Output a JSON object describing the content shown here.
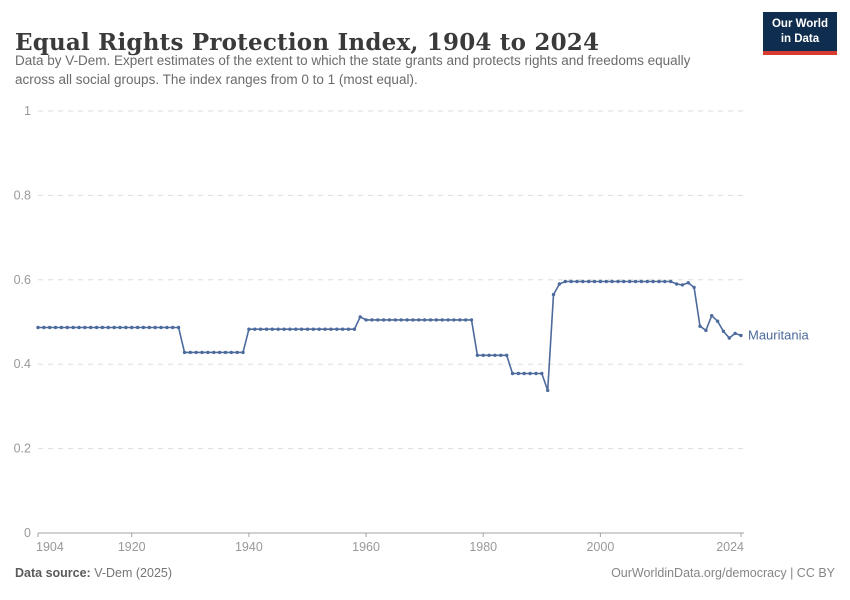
{
  "header": {
    "title": "Equal Rights Protection Index, 1904 to 2024",
    "subtitle": "Data by V-Dem. Expert estimates of the extent to which the state grants and protects rights and freedoms equally across all social groups. The index ranges from 0 to 1 (most equal).",
    "logo": {
      "line1": "Our World",
      "line2": "in Data"
    }
  },
  "footer": {
    "data_source_label": "Data source:",
    "data_source_value": " V-Dem (2025)",
    "right_text": "OurWorldinData.org/democracy | CC BY"
  },
  "colors": {
    "line": "#4C6A9C",
    "grid": "#dedede",
    "axis": "#a3a3a3",
    "tick_label": "#999999",
    "logo_bg": "#0f2d4e",
    "logo_accent": "#d73c34"
  },
  "chart_data": {
    "type": "line",
    "title": "Equal Rights Protection Index, 1904 to 2024",
    "xlabel": "",
    "ylabel": "",
    "xlim": [
      1904,
      2024
    ],
    "ylim": [
      0,
      1
    ],
    "x_ticks": [
      1904,
      1920,
      1940,
      1960,
      1980,
      2000,
      2024
    ],
    "y_ticks": [
      0,
      0.2,
      0.4,
      0.6,
      0.8,
      1
    ],
    "y_tick_labels": [
      "0",
      "0.2",
      "0.4",
      "0.6",
      "0.8",
      "1"
    ],
    "grid": "horizontal-dashed",
    "legend": "end-of-line-label",
    "series": [
      {
        "name": "Mauritania",
        "color": "#4C6A9C",
        "points": [
          [
            1904,
            0.487
          ],
          [
            1905,
            0.487
          ],
          [
            1906,
            0.487
          ],
          [
            1907,
            0.487
          ],
          [
            1908,
            0.487
          ],
          [
            1909,
            0.487
          ],
          [
            1910,
            0.487
          ],
          [
            1911,
            0.487
          ],
          [
            1912,
            0.487
          ],
          [
            1913,
            0.487
          ],
          [
            1914,
            0.487
          ],
          [
            1915,
            0.487
          ],
          [
            1916,
            0.487
          ],
          [
            1917,
            0.487
          ],
          [
            1918,
            0.487
          ],
          [
            1919,
            0.487
          ],
          [
            1920,
            0.487
          ],
          [
            1921,
            0.487
          ],
          [
            1922,
            0.487
          ],
          [
            1923,
            0.487
          ],
          [
            1924,
            0.487
          ],
          [
            1925,
            0.487
          ],
          [
            1926,
            0.487
          ],
          [
            1927,
            0.487
          ],
          [
            1928,
            0.487
          ],
          [
            1929,
            0.428
          ],
          [
            1930,
            0.428
          ],
          [
            1931,
            0.428
          ],
          [
            1932,
            0.428
          ],
          [
            1933,
            0.428
          ],
          [
            1934,
            0.428
          ],
          [
            1935,
            0.428
          ],
          [
            1936,
            0.428
          ],
          [
            1937,
            0.428
          ],
          [
            1938,
            0.428
          ],
          [
            1939,
            0.428
          ],
          [
            1940,
            0.483
          ],
          [
            1941,
            0.483
          ],
          [
            1942,
            0.483
          ],
          [
            1943,
            0.483
          ],
          [
            1944,
            0.483
          ],
          [
            1945,
            0.483
          ],
          [
            1946,
            0.483
          ],
          [
            1947,
            0.483
          ],
          [
            1948,
            0.483
          ],
          [
            1949,
            0.483
          ],
          [
            1950,
            0.483
          ],
          [
            1951,
            0.483
          ],
          [
            1952,
            0.483
          ],
          [
            1953,
            0.483
          ],
          [
            1954,
            0.483
          ],
          [
            1955,
            0.483
          ],
          [
            1956,
            0.483
          ],
          [
            1957,
            0.483
          ],
          [
            1958,
            0.483
          ],
          [
            1959,
            0.512
          ],
          [
            1960,
            0.505
          ],
          [
            1961,
            0.505
          ],
          [
            1962,
            0.505
          ],
          [
            1963,
            0.505
          ],
          [
            1964,
            0.505
          ],
          [
            1965,
            0.505
          ],
          [
            1966,
            0.505
          ],
          [
            1967,
            0.505
          ],
          [
            1968,
            0.505
          ],
          [
            1969,
            0.505
          ],
          [
            1970,
            0.505
          ],
          [
            1971,
            0.505
          ],
          [
            1972,
            0.505
          ],
          [
            1973,
            0.505
          ],
          [
            1974,
            0.505
          ],
          [
            1975,
            0.505
          ],
          [
            1976,
            0.505
          ],
          [
            1977,
            0.505
          ],
          [
            1978,
            0.505
          ],
          [
            1979,
            0.421
          ],
          [
            1980,
            0.421
          ],
          [
            1981,
            0.421
          ],
          [
            1982,
            0.421
          ],
          [
            1983,
            0.421
          ],
          [
            1984,
            0.421
          ],
          [
            1985,
            0.378
          ],
          [
            1986,
            0.378
          ],
          [
            1987,
            0.378
          ],
          [
            1988,
            0.378
          ],
          [
            1989,
            0.378
          ],
          [
            1990,
            0.378
          ],
          [
            1991,
            0.338
          ],
          [
            1992,
            0.565
          ],
          [
            1993,
            0.59
          ],
          [
            1994,
            0.596
          ],
          [
            1995,
            0.596
          ],
          [
            1996,
            0.596
          ],
          [
            1997,
            0.596
          ],
          [
            1998,
            0.596
          ],
          [
            1999,
            0.596
          ],
          [
            2000,
            0.596
          ],
          [
            2001,
            0.596
          ],
          [
            2002,
            0.596
          ],
          [
            2003,
            0.596
          ],
          [
            2004,
            0.596
          ],
          [
            2005,
            0.596
          ],
          [
            2006,
            0.596
          ],
          [
            2007,
            0.596
          ],
          [
            2008,
            0.596
          ],
          [
            2009,
            0.596
          ],
          [
            2010,
            0.596
          ],
          [
            2011,
            0.596
          ],
          [
            2012,
            0.596
          ],
          [
            2013,
            0.59
          ],
          [
            2014,
            0.588
          ],
          [
            2015,
            0.593
          ],
          [
            2016,
            0.582
          ],
          [
            2017,
            0.49
          ],
          [
            2018,
            0.48
          ],
          [
            2019,
            0.515
          ],
          [
            2020,
            0.502
          ],
          [
            2021,
            0.478
          ],
          [
            2022,
            0.462
          ],
          [
            2023,
            0.473
          ],
          [
            2024,
            0.468
          ]
        ]
      }
    ]
  }
}
